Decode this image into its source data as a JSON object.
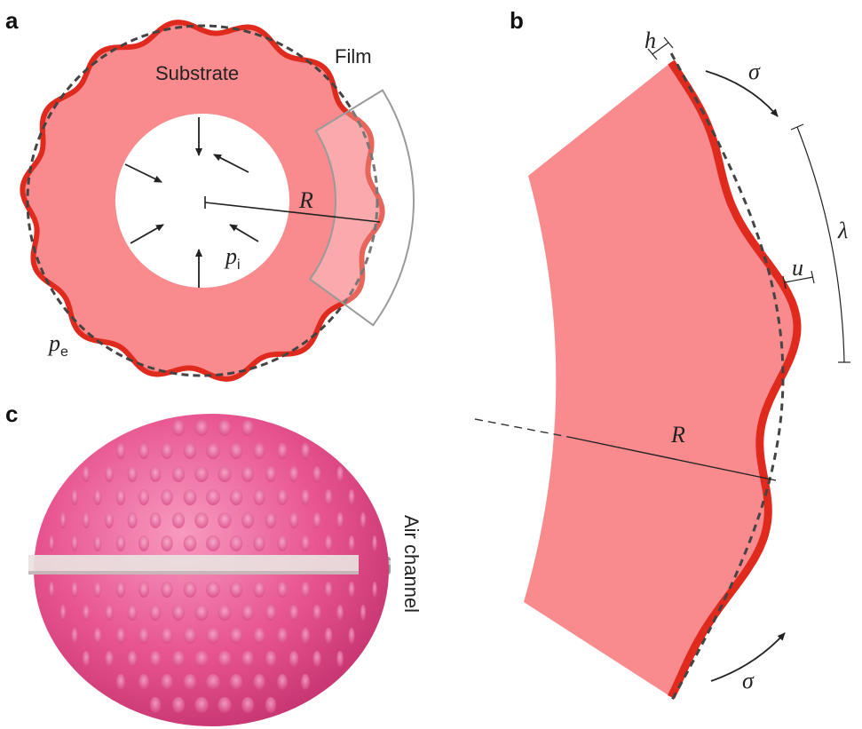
{
  "panels": {
    "a": {
      "letter": "a",
      "substrate_label": "Substrate",
      "film_label": "Film",
      "radius_label": "R",
      "inner_pressure_symbol": "p",
      "inner_pressure_subscript": "i",
      "outer_pressure_symbol": "p",
      "outer_pressure_subscript": "e",
      "wrinkle_count": 14
    },
    "b": {
      "letter": "b",
      "thickness_label": "h",
      "stress_label_top": "σ",
      "stress_label_bottom": "σ",
      "wavelength_label": "λ",
      "amplitude_label": "u",
      "radius_label": "R"
    },
    "c": {
      "letter": "c",
      "channel_label": "Air channel"
    }
  },
  "colors": {
    "substrate": "#f98a8e",
    "substrate_light": "#fbb2b4",
    "film": "#e02a1e",
    "dashed_reference": "#444444",
    "ball": "#e8548f"
  }
}
